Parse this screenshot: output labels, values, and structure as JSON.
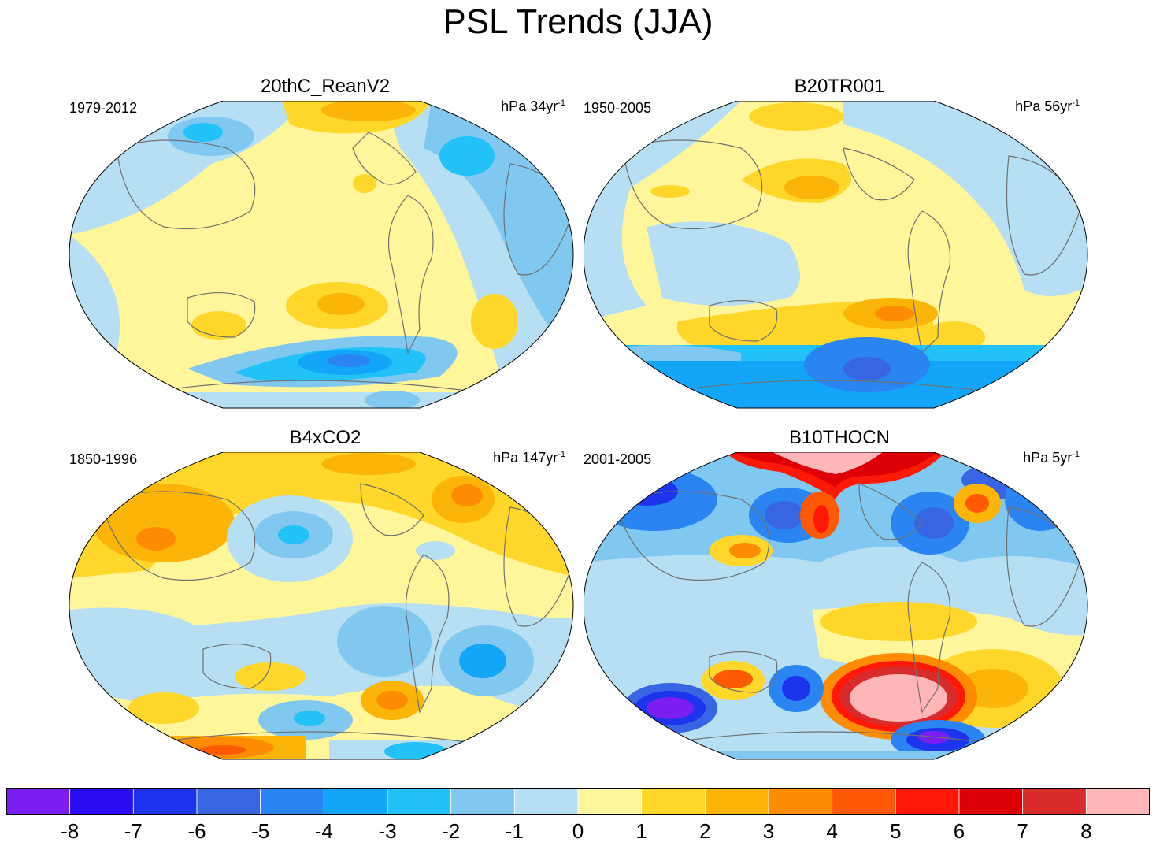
{
  "title": "PSL Trends (JJA)",
  "panels": [
    {
      "title": "20thC_ReanV2",
      "years": "1979-2012",
      "units": "hPa 34yr",
      "units_sup": "-1"
    },
    {
      "title": "B20TR001",
      "years": "1950-2005",
      "units": "hPa 56yr",
      "units_sup": "-1"
    },
    {
      "title": "B4xCO2",
      "years": "1850-1996",
      "units": "hPa 147yr",
      "units_sup": "-1"
    },
    {
      "title": "B10THOCN",
      "years": "2001-2005",
      "units": "hPa 5yr",
      "units_sup": "-1"
    }
  ],
  "colorbar": {
    "colors": [
      "#7b1ff0",
      "#2a0cf5",
      "#1e34ec",
      "#3866e3",
      "#2a84f2",
      "#13a6f8",
      "#22c1f7",
      "#80c8f0",
      "#b6dff3",
      "#fff69b",
      "#fed72a",
      "#fbb408",
      "#fe8c03",
      "#fe5905",
      "#fe1807",
      "#dd0007",
      "#d82c2c",
      "#feb6b9"
    ],
    "labels": [
      "-8",
      "-7",
      "-6",
      "-5",
      "-4",
      "-3",
      "-2",
      "-1",
      "0",
      "1",
      "2",
      "3",
      "4",
      "5",
      "6",
      "7",
      "8"
    ]
  }
}
